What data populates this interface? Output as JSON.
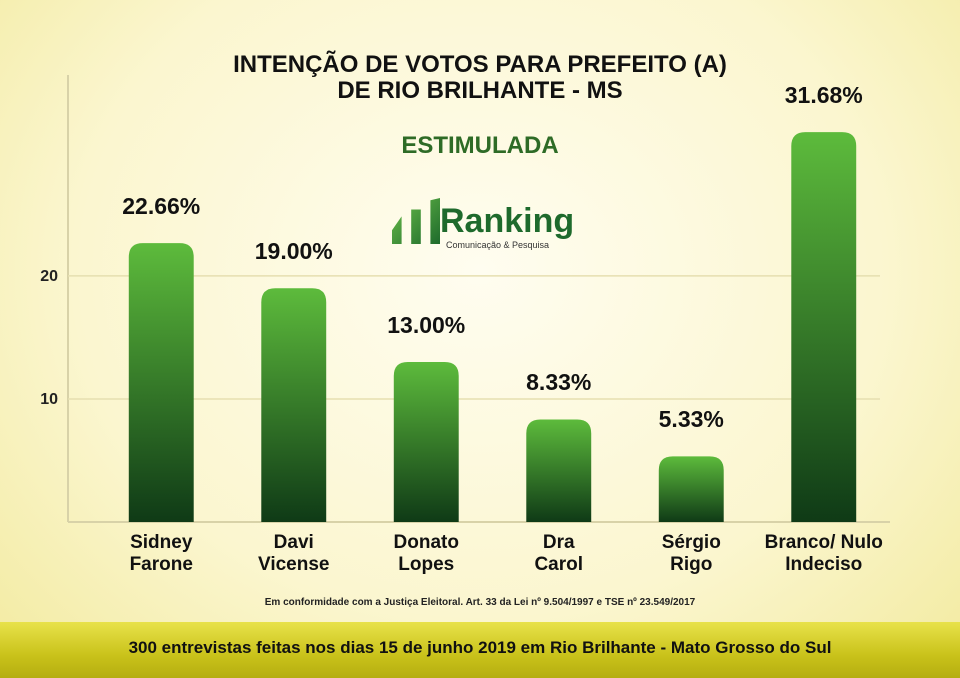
{
  "chart_data": {
    "type": "bar",
    "title": "INTENÇÃO DE VOTOS PARA PREFEITO (A)\nDE RIO BRILHANTE - MS",
    "subtitle": "ESTIMULADA",
    "logo": {
      "name": "Ranking",
      "tagline": "Comunicação & Pesquisa"
    },
    "categories": [
      "Sidney\nFarone",
      "Davi\nVicense",
      "Donato\nLopes",
      "Dra\nCarol",
      "Sérgio\nRigo",
      "Branco/ Nulo\nIndeciso"
    ],
    "values": [
      22.66,
      19.0,
      13.0,
      8.33,
      5.33,
      31.68
    ],
    "value_labels": [
      "22.66%",
      "19.00%",
      "13.00%",
      "8.33%",
      "5.33%",
      "31.68%"
    ],
    "color": "#5dbb3c",
    "color_end": "#0f3a16",
    "ylim": [
      0,
      36
    ],
    "yticks": [
      10,
      20
    ],
    "grid": true,
    "note": "Em conformidade com a Justiça Eleitoral. Art. 33 da Lei nº 9.504/1997 e TSE nº 23.549/2017",
    "footer": "300 entrevistas feitas nos dias 15 de junho 2019 em Rio Brilhante - Mato Grosso do Sul"
  }
}
